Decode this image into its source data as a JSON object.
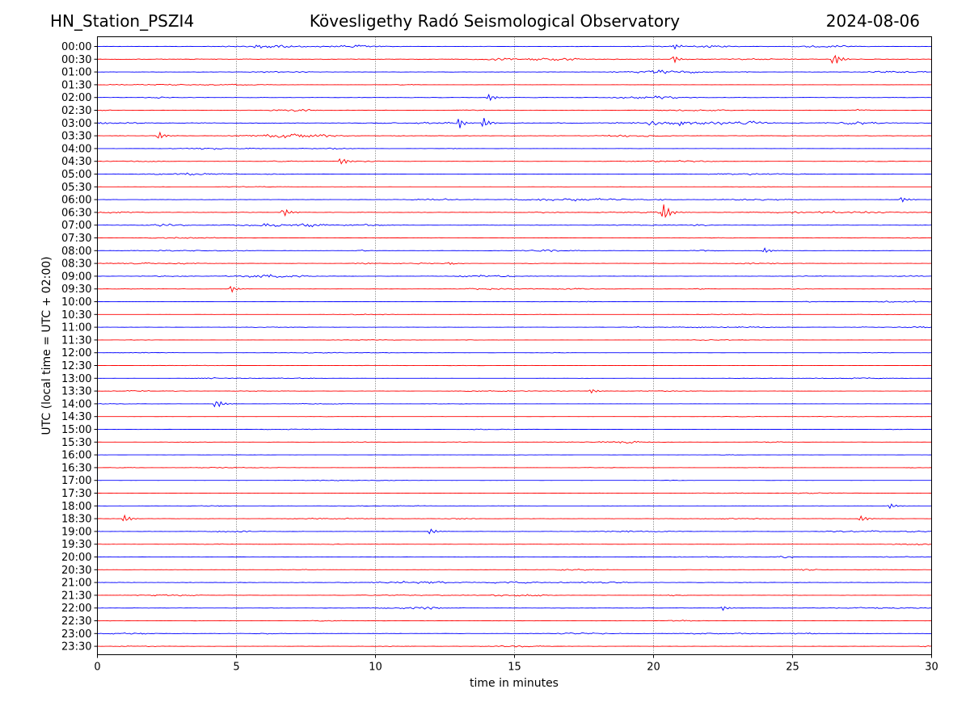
{
  "header": {
    "station": "HN_Station_PSZI4",
    "title": "Kövesligethy Radó Seismological Observatory",
    "date": "2024-08-06"
  },
  "chart_data": {
    "type": "line",
    "title": "Kövesligethy Radó Seismological Observatory",
    "xlabel": "time in minutes",
    "ylabel": "UTC (local time = UTC + 02:00)",
    "xlim": [
      0,
      30
    ],
    "x_ticks": [
      "0",
      "5",
      "10",
      "15",
      "20",
      "25",
      "30"
    ],
    "grid": "vertical dotted at 5-minute intervals",
    "row_labels": [
      "00:00",
      "00:30",
      "01:00",
      "01:30",
      "02:00",
      "02:30",
      "03:00",
      "03:30",
      "04:00",
      "04:30",
      "05:00",
      "05:30",
      "06:00",
      "06:30",
      "07:00",
      "07:30",
      "08:00",
      "08:30",
      "09:00",
      "09:30",
      "10:00",
      "10:30",
      "11:00",
      "11:30",
      "12:00",
      "12:30",
      "13:00",
      "13:30",
      "14:00",
      "14:30",
      "15:00",
      "15:30",
      "16:00",
      "16:30",
      "17:00",
      "17:30",
      "18:00",
      "18:30",
      "19:00",
      "19:30",
      "20:00",
      "20:30",
      "21:00",
      "21:30",
      "22:00",
      "22:30",
      "23:00",
      "23:30"
    ],
    "trace_colors": [
      "#0000ff",
      "#ff0000"
    ],
    "activity": [
      0.45,
      0.75,
      0.4,
      0.25,
      0.5,
      0.45,
      0.85,
      0.55,
      0.25,
      0.3,
      0.25,
      0.12,
      0.4,
      0.55,
      0.45,
      0.25,
      0.35,
      0.3,
      0.35,
      0.25,
      0.2,
      0.12,
      0.25,
      0.12,
      0.15,
      0.1,
      0.15,
      0.2,
      0.15,
      0.15,
      0.15,
      0.2,
      0.12,
      0.15,
      0.12,
      0.2,
      0.2,
      0.35,
      0.35,
      0.3,
      0.4,
      0.3,
      0.45,
      0.3,
      0.4,
      0.3,
      0.4,
      0.3
    ],
    "events": [
      {
        "row": 0,
        "x": 20.8,
        "amp": 0.4
      },
      {
        "row": 1,
        "x": 26.5,
        "amp": 0.9
      },
      {
        "row": 1,
        "x": 20.7,
        "amp": 0.6
      },
      {
        "row": 4,
        "x": 14.1,
        "amp": 0.5
      },
      {
        "row": 6,
        "x": 13.0,
        "amp": 0.8
      },
      {
        "row": 6,
        "x": 13.9,
        "amp": 0.7
      },
      {
        "row": 7,
        "x": 2.2,
        "amp": 0.6
      },
      {
        "row": 9,
        "x": 8.8,
        "amp": 0.5
      },
      {
        "row": 12,
        "x": 28.9,
        "amp": 0.4
      },
      {
        "row": 13,
        "x": 20.4,
        "amp": 1.3
      },
      {
        "row": 13,
        "x": 6.7,
        "amp": 0.6
      },
      {
        "row": 16,
        "x": 24.0,
        "amp": 0.35
      },
      {
        "row": 19,
        "x": 4.8,
        "amp": 0.5
      },
      {
        "row": 27,
        "x": 17.8,
        "amp": 0.3
      },
      {
        "row": 28,
        "x": 4.3,
        "amp": 0.6
      },
      {
        "row": 36,
        "x": 28.5,
        "amp": 0.35
      },
      {
        "row": 37,
        "x": 1.0,
        "amp": 0.5
      },
      {
        "row": 37,
        "x": 27.5,
        "amp": 0.4
      },
      {
        "row": 38,
        "x": 12.0,
        "amp": 0.4
      },
      {
        "row": 44,
        "x": 22.5,
        "amp": 0.3
      }
    ]
  }
}
